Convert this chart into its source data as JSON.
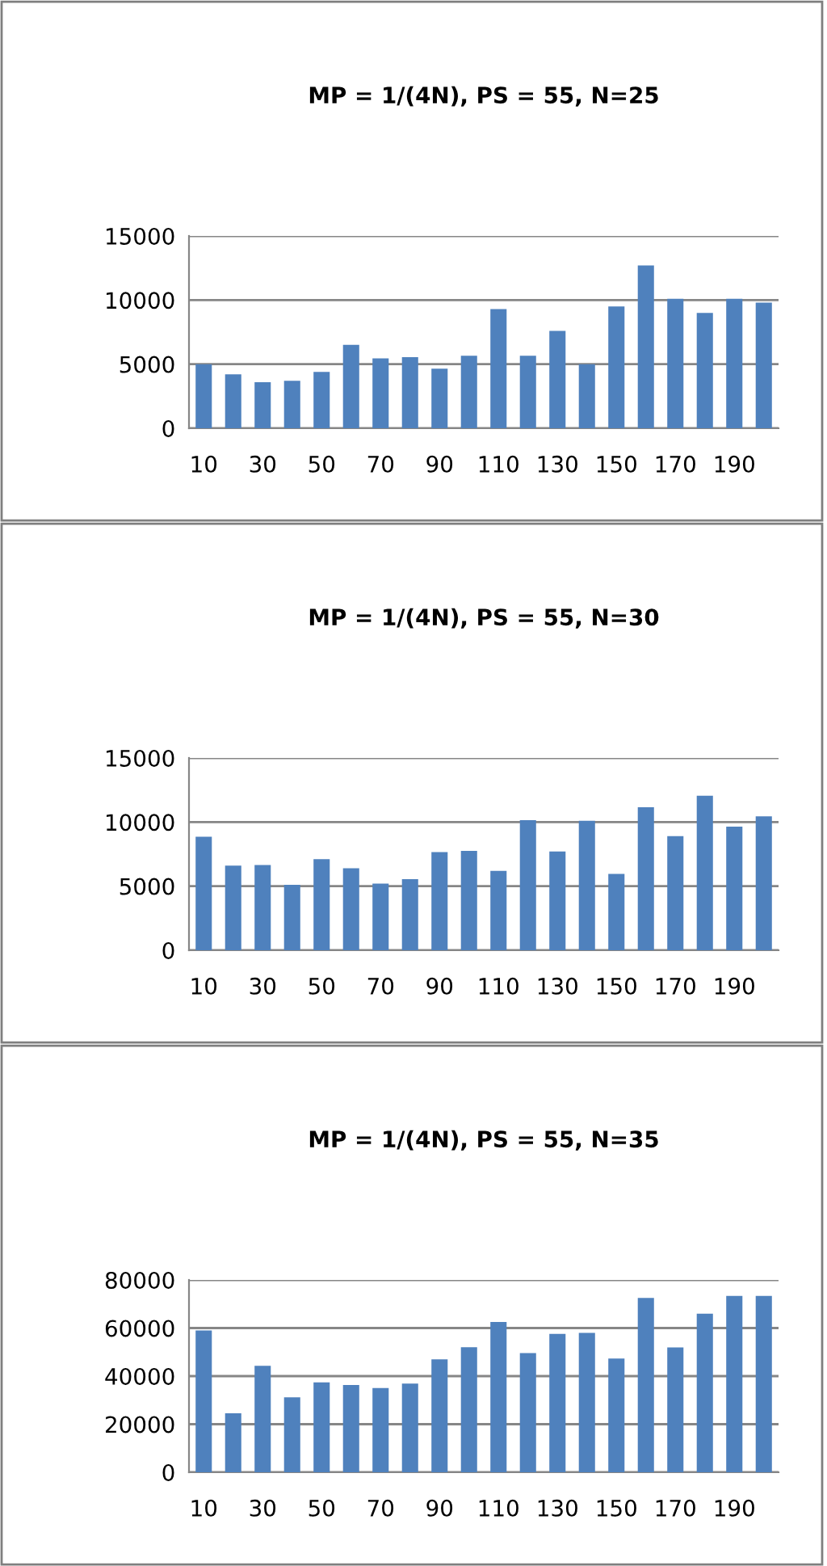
{
  "chart_data": [
    {
      "type": "bar",
      "title": "MP = 1/(4N), PS = 55, N=25",
      "categories": [
        "10",
        null,
        "30",
        null,
        "50",
        null,
        "70",
        null,
        "90",
        null,
        "110",
        null,
        "130",
        null,
        "150",
        null,
        "170",
        null,
        "190",
        null
      ],
      "values": [
        5000,
        4200,
        3600,
        3700,
        4400,
        6500,
        5450,
        5550,
        4650,
        5650,
        9300,
        5650,
        7600,
        5000,
        9500,
        12700,
        10100,
        9000,
        10100,
        9800
      ],
      "color": "#4f81bd",
      "ylim": [
        0,
        15000
      ],
      "yticks": [
        0,
        5000,
        10000,
        15000
      ],
      "grid": "y"
    },
    {
      "type": "bar",
      "title": "MP = 1/(4N), PS = 55, N=30",
      "categories": [
        "10",
        null,
        "30",
        null,
        "50",
        null,
        "70",
        null,
        "90",
        null,
        "110",
        null,
        "130",
        null,
        "150",
        null,
        "170",
        null,
        "190",
        null
      ],
      "values": [
        8850,
        6600,
        6650,
        5100,
        7100,
        6400,
        5200,
        5550,
        7650,
        7750,
        6200,
        10150,
        7700,
        10100,
        5950,
        11150,
        8900,
        12050,
        9650,
        10450
      ],
      "color": "#4f81bd",
      "ylim": [
        0,
        15000
      ],
      "yticks": [
        0,
        5000,
        10000,
        15000
      ],
      "grid": "y"
    },
    {
      "type": "bar",
      "title": "MP = 1/(4N), PS = 55, N=35",
      "categories": [
        "10",
        null,
        "30",
        null,
        "50",
        null,
        "70",
        null,
        "90",
        null,
        "110",
        null,
        "130",
        null,
        "150",
        null,
        "170",
        null,
        "190",
        null
      ],
      "values": [
        59000,
        24500,
        44300,
        31200,
        37400,
        36300,
        35000,
        36900,
        47000,
        52000,
        62500,
        49600,
        57600,
        58000,
        47300,
        72500,
        51900,
        66000,
        73400,
        73400
      ],
      "color": "#4f81bd",
      "ylim": [
        0,
        80000
      ],
      "yticks": [
        0,
        20000,
        40000,
        60000,
        80000
      ],
      "grid": "y"
    }
  ]
}
